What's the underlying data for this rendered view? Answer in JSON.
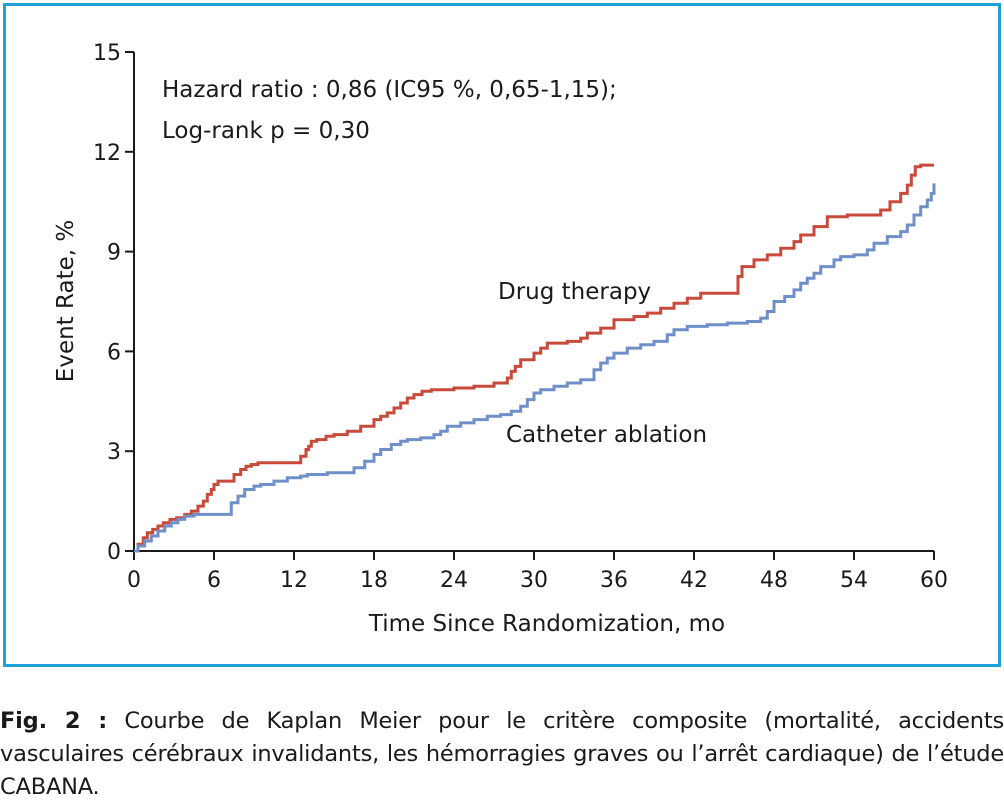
{
  "chart_data": {
    "type": "line",
    "step": true,
    "xlabel": "Time Since Randomization, mo",
    "ylabel": "Event Rate, %",
    "xlim": [
      0,
      60
    ],
    "ylim": [
      0,
      15
    ],
    "xticks": [
      0,
      6,
      12,
      18,
      24,
      30,
      36,
      42,
      48,
      54,
      60
    ],
    "yticks": [
      0,
      3,
      6,
      9,
      12,
      15
    ],
    "grid": false,
    "annotations": [
      "Hazard ratio : 0,86 (IC95 %, 0,65-1,15);",
      "Log-rank p = 0,30"
    ],
    "series": [
      {
        "name": "Drug therapy",
        "color": "#c84a3a",
        "x": [
          0,
          0.3,
          0.7,
          1.0,
          1.4,
          1.8,
          2.2,
          2.7,
          3.2,
          3.8,
          4.3,
          4.8,
          5.2,
          5.5,
          5.8,
          6.0,
          6.3,
          6.6,
          7.0,
          7.5,
          8.0,
          8.4,
          8.8,
          9.3,
          10.0,
          11.0,
          12.5,
          12.9,
          13.1,
          13.3,
          13.7,
          14.4,
          15.0,
          16.0,
          17.0,
          18.0,
          18.5,
          19.0,
          19.5,
          20.0,
          20.5,
          21.0,
          21.6,
          22.3,
          23.0,
          24.0,
          25.5,
          27.0,
          28.0,
          28.3,
          28.6,
          29.0,
          30.0,
          30.5,
          31.0,
          32.5,
          33.5,
          34.0,
          35.0,
          36.0,
          37.5,
          38.5,
          39.5,
          40.5,
          41.5,
          42.5,
          44.0,
          45.0,
          45.3,
          45.6,
          46.5,
          47.5,
          48.5,
          49.5,
          50.0,
          51.0,
          52.0,
          53.5,
          55.0,
          56.0,
          56.7,
          57.5,
          58.0,
          58.3,
          58.6,
          59.0,
          60.0
        ],
        "values": [
          0,
          0.2,
          0.4,
          0.55,
          0.65,
          0.75,
          0.85,
          0.95,
          1.0,
          1.1,
          1.2,
          1.35,
          1.5,
          1.7,
          1.85,
          2.0,
          2.1,
          2.1,
          2.1,
          2.3,
          2.45,
          2.55,
          2.6,
          2.65,
          2.65,
          2.65,
          2.85,
          3.05,
          3.15,
          3.3,
          3.35,
          3.45,
          3.5,
          3.6,
          3.75,
          3.95,
          4.05,
          4.15,
          4.3,
          4.45,
          4.6,
          4.7,
          4.8,
          4.85,
          4.85,
          4.9,
          4.95,
          5.05,
          5.2,
          5.4,
          5.55,
          5.75,
          5.95,
          6.1,
          6.25,
          6.3,
          6.4,
          6.55,
          6.7,
          6.95,
          7.05,
          7.15,
          7.3,
          7.45,
          7.6,
          7.75,
          7.75,
          7.75,
          8.25,
          8.55,
          8.75,
          8.9,
          9.1,
          9.3,
          9.5,
          9.75,
          10.05,
          10.1,
          10.1,
          10.25,
          10.5,
          10.75,
          11.0,
          11.3,
          11.55,
          11.6,
          11.6
        ]
      },
      {
        "name": "Catheter ablation",
        "color": "#6f8fc9",
        "x": [
          0,
          0.3,
          0.8,
          1.3,
          1.8,
          2.3,
          2.8,
          3.3,
          3.8,
          4.5,
          5.2,
          5.8,
          6.3,
          7.0,
          7.3,
          7.8,
          8.3,
          9.0,
          9.5,
          10.5,
          11.5,
          12.5,
          13.0,
          14.5,
          15.5,
          16.5,
          17.3,
          18.0,
          18.5,
          19.3,
          20.0,
          20.5,
          21.5,
          22.5,
          23.0,
          23.5,
          24.5,
          25.5,
          26.5,
          27.5,
          28.3,
          29.0,
          29.5,
          30.0,
          30.5,
          31.5,
          32.5,
          33.5,
          34.5,
          35.0,
          35.5,
          36.0,
          37.0,
          38.0,
          39.0,
          40.0,
          40.5,
          41.5,
          43.0,
          44.5,
          46.0,
          47.0,
          47.5,
          48.0,
          48.8,
          49.5,
          50.0,
          50.5,
          51.0,
          51.5,
          52.5,
          53.0,
          54.0,
          55.0,
          55.5,
          56.5,
          57.5,
          58.0,
          58.5,
          59.0,
          59.5,
          59.8,
          60.0
        ],
        "values": [
          0,
          0.15,
          0.3,
          0.45,
          0.6,
          0.75,
          0.85,
          0.95,
          1.05,
          1.1,
          1.1,
          1.1,
          1.1,
          1.1,
          1.45,
          1.65,
          1.85,
          1.95,
          2.0,
          2.1,
          2.2,
          2.25,
          2.3,
          2.35,
          2.35,
          2.5,
          2.7,
          2.9,
          3.05,
          3.2,
          3.3,
          3.35,
          3.4,
          3.5,
          3.6,
          3.75,
          3.85,
          3.95,
          4.05,
          4.1,
          4.2,
          4.35,
          4.55,
          4.75,
          4.85,
          4.95,
          5.05,
          5.15,
          5.45,
          5.65,
          5.8,
          5.95,
          6.1,
          6.2,
          6.3,
          6.5,
          6.65,
          6.75,
          6.8,
          6.85,
          6.9,
          7.0,
          7.2,
          7.5,
          7.65,
          7.85,
          8.05,
          8.2,
          8.35,
          8.55,
          8.75,
          8.85,
          8.9,
          9.05,
          9.25,
          9.45,
          9.6,
          9.8,
          10.1,
          10.35,
          10.55,
          10.75,
          11.05
        ]
      }
    ]
  },
  "caption": {
    "label": "Fig. 2 :",
    "text": " Courbe de Kaplan Meier pour le critère composite (mortalité, accidents vasculaires cérébraux invalidants, les hémorragies graves ou l’arrêt cardiaque) de l’étude CABANA."
  }
}
